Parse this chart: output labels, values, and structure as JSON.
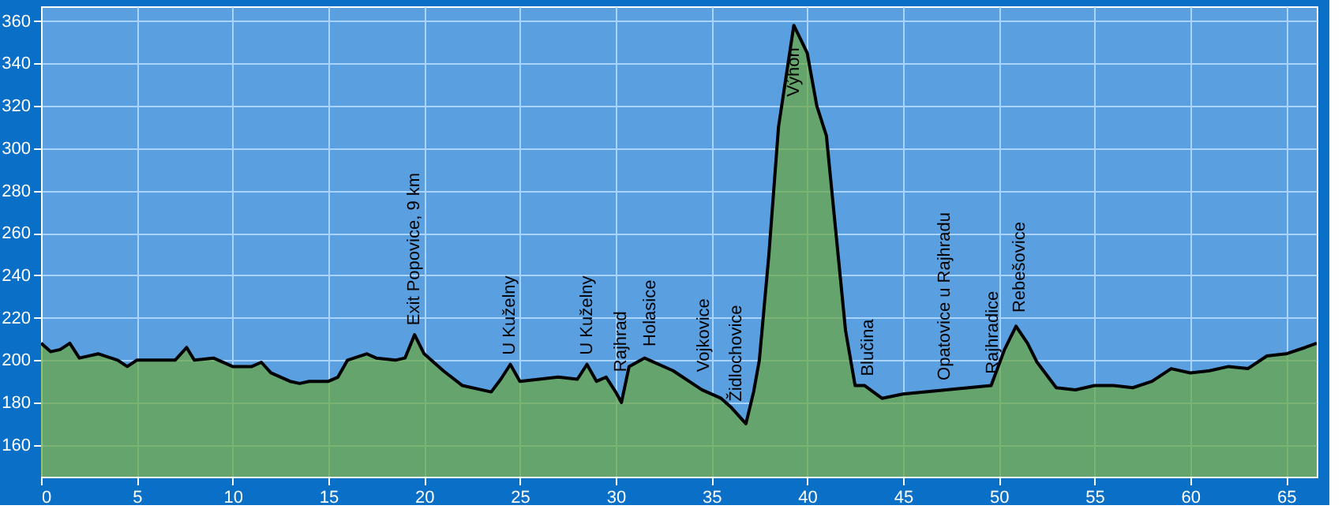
{
  "chart_data": {
    "type": "area",
    "x": [
      0,
      0.5,
      1,
      1.5,
      2,
      3,
      4,
      4.5,
      5,
      6,
      7,
      7.6,
      8,
      9,
      10,
      11,
      11.5,
      12,
      13,
      13.5,
      14,
      15,
      15.5,
      16,
      17,
      17.5,
      18.5,
      19,
      19.5,
      20,
      21,
      22,
      23.5,
      24,
      24.5,
      25,
      26,
      27,
      28,
      28.5,
      29,
      29.5,
      30,
      30.3,
      30.7,
      31.5,
      33,
      34.5,
      35.5,
      36,
      36.8,
      37.2,
      37.5,
      38,
      38.5,
      39.3,
      40,
      40.5,
      41,
      41.5,
      42,
      42.5,
      43,
      43.9,
      45,
      49.6,
      50.3,
      50.9,
      51.5,
      52,
      53,
      54,
      55,
      56,
      57,
      58,
      59,
      60,
      61,
      62,
      63,
      64,
      65,
      66,
      66.6
    ],
    "series": [
      {
        "color": "#6aa63a",
        "values": [
          208,
          204,
          205,
          208,
          201,
          203,
          200,
          197,
          200,
          200,
          200,
          206,
          200,
          201,
          197,
          197,
          199,
          194,
          190,
          189,
          190,
          190,
          192,
          200,
          203,
          201,
          200,
          201,
          212,
          203,
          195,
          188,
          185,
          191,
          198,
          190,
          191,
          192,
          191,
          198,
          190,
          192,
          185,
          180,
          197,
          201,
          195,
          186,
          182,
          178,
          170,
          185,
          200,
          250,
          310,
          358,
          345,
          320,
          306,
          260,
          214,
          188,
          188,
          182,
          184,
          188,
          205,
          216,
          208,
          199,
          187,
          186,
          188,
          188,
          187,
          190,
          196,
          194,
          195,
          197,
          196,
          202,
          203,
          206,
          208
        ]
      }
    ],
    "xlim": [
      0,
      66.6
    ],
    "ylim": [
      145,
      367
    ],
    "xticks": [
      0,
      5,
      10,
      15,
      20,
      25,
      30,
      35,
      40,
      45,
      50,
      55,
      60,
      65
    ],
    "yticks": [
      160,
      180,
      200,
      220,
      240,
      260,
      280,
      300,
      320,
      340,
      360
    ],
    "grid": true,
    "annotations": [
      {
        "text": "Exit Popovice, 9 km",
        "x": 19.5,
        "y": 212
      },
      {
        "text": "U Kuželny",
        "x": 24.5,
        "y": 198
      },
      {
        "text": "U Kuželny",
        "x": 28.5,
        "y": 198
      },
      {
        "text": "Rajhrad",
        "x": 30.3,
        "y": 190
      },
      {
        "text": "Holasice",
        "x": 31.8,
        "y": 202
      },
      {
        "text": "Vojkovice",
        "x": 34.6,
        "y": 190
      },
      {
        "text": "Židlochovice",
        "x": 36.3,
        "y": 176
      },
      {
        "text": "Výhon",
        "x": 39.3,
        "y": 358
      },
      {
        "text": "Blučina",
        "x": 43.2,
        "y": 188
      },
      {
        "text": "Opatovice u Rajhradu",
        "x": 47.2,
        "y": 186
      },
      {
        "text": "Rajhradice",
        "x": 49.7,
        "y": 189
      },
      {
        "text": "Rebešovice",
        "x": 51.1,
        "y": 218
      }
    ]
  }
}
